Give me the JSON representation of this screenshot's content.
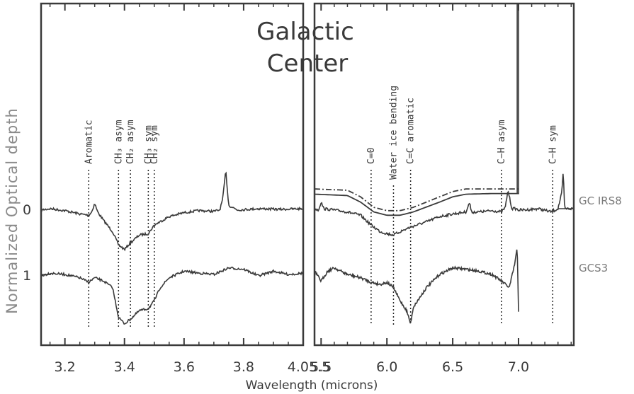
{
  "chart_data": {
    "type": "line",
    "title": [
      "Galactic",
      "Center"
    ],
    "xlabel": "Wavelength (microns)",
    "ylabel": "Normalized Optical depth",
    "y_offset_labels": [
      "0",
      "1"
    ],
    "panels": [
      {
        "xlim": [
          3.12,
          4.0
        ],
        "xticks": [
          3.2,
          3.4,
          3.6,
          3.8
        ],
        "xtick_labels": [
          "3.2",
          "3.4",
          "3.6",
          "3.8"
        ],
        "features": [
          {
            "x": 3.28,
            "label": "Aromatic"
          },
          {
            "x": 3.38,
            "label": "CH₃ asym"
          },
          {
            "x": 3.42,
            "label": "CH₂ asym"
          },
          {
            "x": 3.48,
            "label": "CH₃ sym"
          },
          {
            "x": 3.5,
            "label": "CH₂ sym"
          }
        ]
      },
      {
        "xlim": [
          5.45,
          7.42
        ],
        "xticks": [
          5.5,
          6.0,
          6.5,
          7.0
        ],
        "xtick_labels": [
          "5.5",
          "6.0",
          "6.5",
          "7.0"
        ],
        "features": [
          {
            "x": 5.88,
            "label": "C=0"
          },
          {
            "x": 6.05,
            "label": "Water ice bending"
          },
          {
            "x": 6.18,
            "label": "C=C aromatic"
          },
          {
            "x": 6.87,
            "label": "C−H asym"
          },
          {
            "x": 7.26,
            "label": "C−H sym"
          }
        ]
      }
    ],
    "boundary_tick_label": "4.05.5",
    "series": [
      {
        "name": "GC IRS8",
        "panel1": {
          "x": [
            3.12,
            3.15,
            3.2,
            3.25,
            3.28,
            3.29,
            3.3,
            3.31,
            3.33,
            3.36,
            3.38,
            3.4,
            3.42,
            3.45,
            3.48,
            3.5,
            3.55,
            3.6,
            3.65,
            3.7,
            3.72,
            3.73,
            3.74,
            3.75,
            3.78,
            3.85,
            3.92,
            4.0
          ],
          "y": [
            0.02,
            0.0,
            0.03,
            0.08,
            0.1,
            0.05,
            -0.08,
            0.05,
            0.18,
            0.35,
            0.55,
            0.62,
            0.52,
            0.4,
            0.38,
            0.25,
            0.12,
            0.06,
            0.03,
            0.04,
            0.02,
            -0.15,
            -0.58,
            -0.05,
            0.02,
            0.0,
            0.01,
            0.0
          ]
        },
        "panel2": {
          "x": [
            5.45,
            5.48,
            5.5,
            5.52,
            5.6,
            5.7,
            5.8,
            5.88,
            5.95,
            6.0,
            6.05,
            6.1,
            6.18,
            6.3,
            6.4,
            6.5,
            6.6,
            6.63,
            6.64,
            6.7,
            6.8,
            6.87,
            6.9,
            6.92,
            6.95,
            6.98,
            7.0,
            7.05,
            7.15,
            7.25,
            7.3,
            7.33,
            7.34,
            7.35,
            7.42
          ],
          "y": [
            0.0,
            0.02,
            -0.1,
            0.0,
            0.02,
            0.05,
            0.1,
            0.25,
            0.35,
            0.38,
            0.4,
            0.35,
            0.28,
            0.2,
            0.12,
            0.08,
            0.05,
            -0.1,
            0.05,
            0.05,
            0.03,
            0.05,
            -0.02,
            -0.28,
            0.0,
            0.0,
            0.02,
            0.02,
            0.0,
            0.05,
            0.0,
            -0.25,
            -0.58,
            0.0,
            0.0
          ]
        },
        "continuum_solid": {
          "x": [
            5.45,
            5.7,
            5.8,
            5.9,
            6.0,
            6.1,
            6.2,
            6.4,
            6.5,
            6.6,
            6.8,
            7.0
          ],
          "y": [
            -0.22,
            -0.2,
            -0.1,
            0.05,
            0.1,
            0.1,
            0.05,
            -0.1,
            -0.18,
            -0.22,
            -0.23,
            -0.23
          ]
        },
        "continuum_dashdot": {
          "x": [
            5.45,
            5.7,
            5.8,
            5.9,
            6.0,
            6.1,
            6.2,
            6.4,
            6.5,
            6.6,
            6.8,
            7.0
          ],
          "y": [
            -0.3,
            -0.28,
            -0.18,
            -0.02,
            0.03,
            0.03,
            -0.02,
            -0.18,
            -0.26,
            -0.3,
            -0.3,
            -0.3
          ]
        }
      },
      {
        "name": "GCS3",
        "panel1": {
          "x": [
            3.12,
            3.15,
            3.2,
            3.25,
            3.28,
            3.3,
            3.33,
            3.36,
            3.38,
            3.4,
            3.42,
            3.45,
            3.48,
            3.5,
            3.52,
            3.55,
            3.6,
            3.65,
            3.7,
            3.75,
            3.8,
            3.85,
            3.9,
            3.95,
            4.0
          ],
          "y": [
            1.02,
            0.98,
            1.0,
            1.05,
            1.12,
            1.05,
            1.1,
            1.2,
            1.65,
            1.75,
            1.68,
            1.55,
            1.52,
            1.4,
            1.2,
            1.05,
            0.95,
            0.98,
            1.0,
            0.9,
            0.92,
            1.02,
            0.95,
            1.0,
            0.98
          ]
        },
        "panel2": {
          "x": [
            5.45,
            5.5,
            5.55,
            5.6,
            5.7,
            5.8,
            5.88,
            5.95,
            6.0,
            6.05,
            6.1,
            6.15,
            6.18,
            6.2,
            6.3,
            6.4,
            6.5,
            6.6,
            6.7,
            6.8,
            6.87,
            6.93,
            6.97,
            6.99,
            7.0
          ],
          "y": [
            0.95,
            1.1,
            0.95,
            0.9,
            1.0,
            1.05,
            1.12,
            1.15,
            1.12,
            1.2,
            1.4,
            1.55,
            1.75,
            1.5,
            1.2,
            1.0,
            0.9,
            0.92,
            0.95,
            1.0,
            1.1,
            1.2,
            0.85,
            0.6,
            1.55
          ]
        }
      }
    ]
  }
}
